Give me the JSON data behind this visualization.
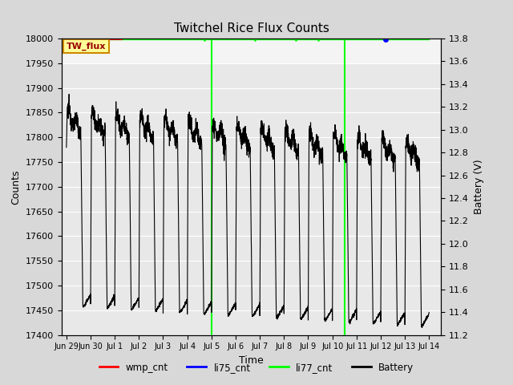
{
  "title": "Twitchel Rice Flux Counts",
  "xlabel": "Time",
  "ylabel_left": "Counts",
  "ylabel_right": "Battery (V)",
  "ylim_left": [
    17400,
    18000
  ],
  "ylim_right": [
    11.2,
    13.8
  ],
  "bg_color": "#d8d8d8",
  "plot_bg_color": "#e8e8e8",
  "plot_bg_top": "#f4f4f4",
  "tw_flux_box_color": "#ffff99",
  "tw_flux_border_color": "#cc8800",
  "tw_flux_text_color": "#990000",
  "li77_cnt_color": "#00ff00",
  "li75_cnt_color": "#0000ff",
  "wmp_cnt_color": "#ff0000",
  "battery_color": "#000000",
  "legend_entries": [
    "wmp_cnt",
    "li75_cnt",
    "li77_cnt",
    "Battery"
  ],
  "legend_colors": [
    "#ff0000",
    "#0000ff",
    "#00ff00",
    "#000000"
  ],
  "yticks_left": [
    17400,
    17450,
    17500,
    17550,
    17600,
    17650,
    17700,
    17750,
    17800,
    17850,
    17900,
    17950,
    18000
  ],
  "yticks_right": [
    11.2,
    11.4,
    11.6,
    11.8,
    12.0,
    12.2,
    12.4,
    12.6,
    12.8,
    13.0,
    13.2,
    13.4,
    13.6,
    13.8
  ],
  "xtick_positions": [
    0.0,
    1.0,
    2.0,
    3.0,
    4.0,
    5.0,
    6.0,
    7.0,
    8.0,
    9.0,
    10.0,
    11.0,
    12.0,
    13.0,
    14.0,
    15.0
  ],
  "xtick_labels": [
    "Jun 29",
    "Jun 30",
    "Jul 1",
    "Jul 2",
    "Jul 3",
    "Jul 4",
    "Jul 5",
    "Jul 6",
    "Jul 7",
    "Jul 8",
    "Jul 9",
    "Jul 10",
    "Jul 11",
    "Jul 12",
    "Jul 13",
    "Jul 14"
  ],
  "green_vlines": [
    6.0,
    11.5
  ],
  "n_cycles": 15,
  "period": 1.0,
  "flat_top_batt": 13.15,
  "flat_bottom_batt": 11.45,
  "overall_trend": 0.3,
  "noise_std": 0.04
}
